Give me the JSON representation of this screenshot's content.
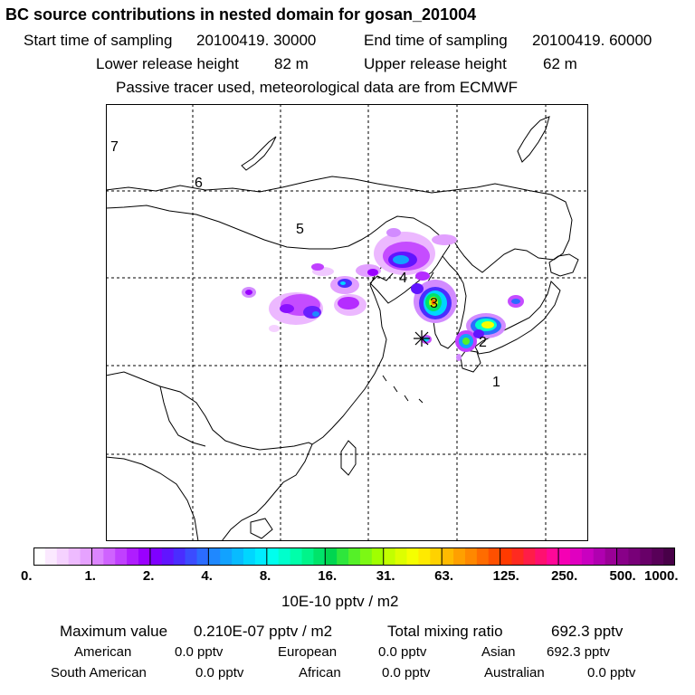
{
  "title": "BC  source contributions in nested domain for gosan_201004",
  "header": {
    "start_label": "Start time of sampling",
    "start_value": "20100419. 30000",
    "end_label": "End time of sampling",
    "end_value": "20100419. 60000",
    "lower_label": "Lower release height",
    "lower_value": "82 m",
    "upper_label": "Upper release height",
    "upper_value": "62 m",
    "note": "Passive tracer used, meteorological data are from ECMWF"
  },
  "map": {
    "region_labels": [
      "7",
      "6",
      "5",
      "4",
      "3",
      "2",
      "1"
    ],
    "receptor_marker": "asterisk",
    "grid": "on"
  },
  "colorbar": {
    "tick_labels": [
      "0.",
      "1.",
      "2.",
      "4.",
      "8.",
      "16.",
      "31.",
      "63.",
      "125.",
      "250.",
      "500.",
      "1000."
    ],
    "unit": "10E-10 pptv / m2",
    "colors": [
      [
        "#ffffff",
        "#fbe9ff",
        "#f5d2ff",
        "#eebbff",
        "#e6a2ff"
      ],
      [
        "#dc85ff",
        "#cf63ff",
        "#c040ff",
        "#af1dff",
        "#9a00ff"
      ],
      [
        "#7f00ff",
        "#6114ff",
        "#4a2dff",
        "#3b4cff",
        "#2b6cff"
      ],
      [
        "#1f88ff",
        "#12a2ff",
        "#08bbff",
        "#00d6ff",
        "#00ecff"
      ],
      [
        "#00ffee",
        "#00ffcc",
        "#00ffaa",
        "#00f48a",
        "#00e46a"
      ],
      [
        "#00d650",
        "#2ee63c",
        "#55f028",
        "#7cf814",
        "#a0ff00"
      ],
      [
        "#c2ff00",
        "#ddff00",
        "#f5ff00",
        "#ffea00",
        "#ffd200"
      ],
      [
        "#ffba00",
        "#ffa000",
        "#ff8800",
        "#ff6c00",
        "#ff5000"
      ],
      [
        "#ff3a00",
        "#ff2a20",
        "#ff1d48",
        "#ff1070",
        "#ff0898"
      ],
      [
        "#f500b4",
        "#e000c0",
        "#c900c0",
        "#b000b0",
        "#9a0096"
      ],
      [
        "#880088",
        "#780078",
        "#680068",
        "#580058",
        "#480048"
      ]
    ]
  },
  "footer": {
    "max_label": "Maximum value",
    "max_value": "0.210E-07 pptv / m2",
    "total_label": "Total mixing ratio",
    "total_value": "692.3 pptv",
    "sources": [
      {
        "name": "American",
        "value": "0.0 pptv"
      },
      {
        "name": "European",
        "value": "0.0 pptv"
      },
      {
        "name": "Asian",
        "value": "692.3 pptv"
      },
      {
        "name": "South American",
        "value": "0.0 pptv"
      },
      {
        "name": "African",
        "value": "0.0 pptv"
      },
      {
        "name": "Australian",
        "value": "0.0 pptv"
      }
    ]
  }
}
